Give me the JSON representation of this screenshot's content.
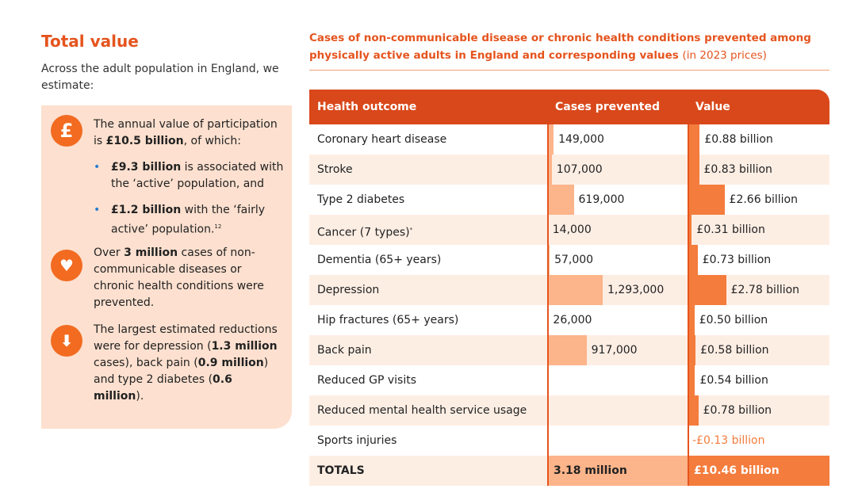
{
  "panel": {
    "title": "Total value",
    "intro": "Across the adult population in England, we estimate:",
    "icon": "£",
    "participation": [
      "The annual value of participation is ",
      "£10.5 billion",
      ", of which:"
    ],
    "active": [
      "£9.3 billion",
      " is associated with the ‘active’ population, and"
    ],
    "fairly": [
      "£1.2 billion",
      " with the ‘fairly active’ population.",
      "12"
    ],
    "cases": [
      "Over ",
      "3 million",
      " cases of non-communicable diseases or chronic health conditions were prevented."
    ],
    "reductions": [
      "The largest estimated reductions were for depression (",
      "1.3 million",
      " cases), back pain (",
      "0.9 million",
      ") and type 2 diabetes (",
      "0.6 million",
      ")."
    ]
  },
  "table": {
    "title": "Cases of non-communicable disease or chronic health conditions prevented among physically active adults in England and corresponding values",
    "title_note": "(in 2023 prices)",
    "header": [
      "Health outcome",
      "Cases prevented",
      "Value"
    ],
    "rows": [
      {
        "outcome": "Coronary heart disease",
        "cases": {
          "value": 149000,
          "label": "149,000"
        },
        "value": {
          "value": 0.88,
          "label": "£0.88 billion"
        }
      },
      {
        "outcome": "Stroke",
        "cases": {
          "value": 107000,
          "label": "107,000"
        },
        "value": {
          "value": 0.83,
          "label": "£0.83 billion"
        }
      },
      {
        "outcome": "Type 2 diabetes",
        "cases": {
          "value": 619000,
          "label": "619,000"
        },
        "value": {
          "value": 2.66,
          "label": "£2.66 billion"
        }
      },
      {
        "outcome": "Cancer (7 types)",
        "note": "*",
        "cases": {
          "value": 14000,
          "label": "14,000"
        },
        "value": {
          "value": 0.31,
          "label": "£0.31 billion"
        }
      },
      {
        "outcome": "Dementia (65+ years)",
        "cases": {
          "value": 57000,
          "label": "57,000"
        },
        "value": {
          "value": 0.73,
          "label": "£0.73 billion"
        }
      },
      {
        "outcome": "Depression",
        "cases": {
          "value": 1293000,
          "label": "1,293,000"
        },
        "value": {
          "value": 2.78,
          "label": "£2.78 billion"
        }
      },
      {
        "outcome": "Hip fractures (65+ years)",
        "cases": {
          "value": 26000,
          "label": "26,000"
        },
        "value": {
          "value": 0.5,
          "label": "£0.50 billion"
        }
      },
      {
        "outcome": "Back pain",
        "cases": {
          "value": 917000,
          "label": "917,000"
        },
        "value": {
          "value": 0.58,
          "label": "£0.58 billion"
        }
      },
      {
        "outcome": "Reduced GP visits",
        "cases": null,
        "value": {
          "value": 0.54,
          "label": "£0.54 billion"
        }
      },
      {
        "outcome": "Reduced mental health service usage",
        "cases": null,
        "value": {
          "value": 0.78,
          "label": "£0.78 billion"
        }
      },
      {
        "outcome": "Sports injuries",
        "cases": null,
        "value": {
          "value": -0.13,
          "label": "-£0.13 billion"
        }
      }
    ],
    "totals": {
      "outcome": "TOTALS",
      "cases": "3.18 million",
      "value": "£10.46 billion"
    }
  }
}
